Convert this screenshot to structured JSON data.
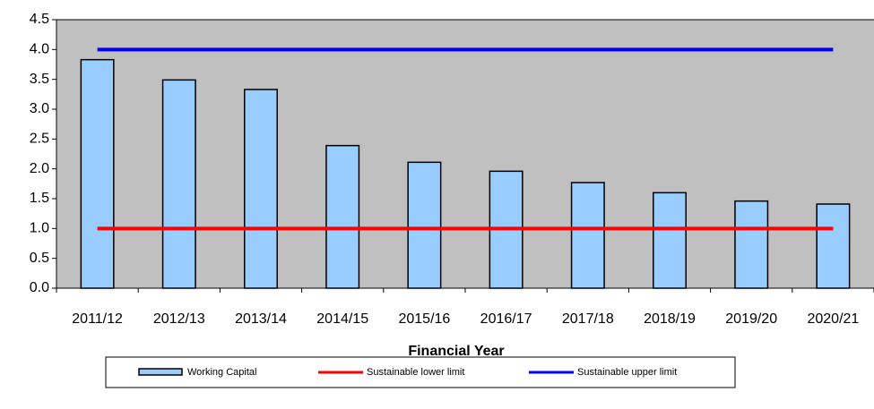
{
  "chart_data": {
    "type": "bar",
    "x_label": "Financial Year",
    "categories": [
      "2011/12",
      "2012/13",
      "2013/14",
      "2014/15",
      "2015/16",
      "2016/17",
      "2017/18",
      "2018/19",
      "2019/20",
      "2020/21"
    ],
    "series": [
      {
        "name": "Working Capital",
        "type": "bar",
        "color": "#99ccff",
        "values": [
          3.83,
          3.49,
          3.33,
          2.39,
          2.11,
          1.96,
          1.77,
          1.6,
          1.46,
          1.41
        ]
      },
      {
        "name": "Sustainable lower limit",
        "type": "line",
        "color": "#ff0000",
        "values": [
          1,
          1,
          1,
          1,
          1,
          1,
          1,
          1,
          1,
          1
        ]
      },
      {
        "name": "Sustainable upper limit",
        "type": "line",
        "color": "#0000ff",
        "values": [
          4,
          4,
          4,
          4,
          4,
          4,
          4,
          4,
          4,
          4
        ]
      }
    ],
    "ylim": [
      0,
      4.5
    ],
    "yticks": [
      {
        "value": 0,
        "label": "0.0"
      },
      {
        "value": 0.5,
        "label": "0.5"
      },
      {
        "value": 1,
        "label": "1.0"
      },
      {
        "value": 1.5,
        "label": "1.5"
      },
      {
        "value": 2,
        "label": "2.0"
      },
      {
        "value": 2.5,
        "label": "2.5"
      },
      {
        "value": 3,
        "label": "3.0"
      },
      {
        "value": 3.5,
        "label": "3.5"
      },
      {
        "value": 4,
        "label": "4.0"
      },
      {
        "value": 4.5,
        "label": "4.5"
      }
    ],
    "plot_background": "#c0c0c0"
  }
}
